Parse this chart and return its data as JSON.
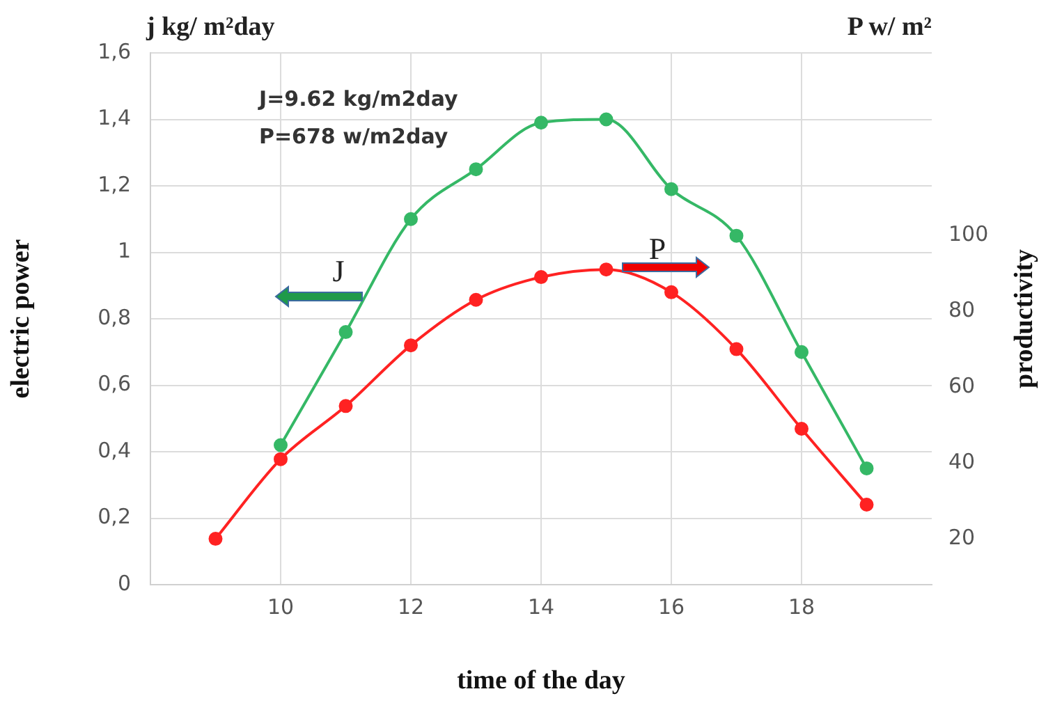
{
  "chart_data": {
    "type": "line",
    "xlabel": "time of the day",
    "ylabel": "electric power",
    "y2label": "productivity",
    "x": [
      9,
      10,
      11,
      12,
      13,
      14,
      15,
      16,
      17,
      18,
      19
    ],
    "series": [
      {
        "color": "#35b866",
        "x": [
          10,
          11,
          12,
          13,
          14,
          15,
          16,
          17,
          18,
          19
        ],
        "values": [
          0.42,
          0.76,
          1.1,
          1.25,
          1.39,
          1.4,
          1.19,
          1.05,
          0.7,
          0.35
        ]
      },
      {
        "color": "#ff2222",
        "axis": "y2",
        "values": [
          20,
          41,
          55,
          71,
          83,
          89,
          91,
          85,
          70,
          49,
          29
        ]
      }
    ],
    "xlim": [
      8,
      20
    ],
    "xticks": [
      10,
      12,
      14,
      16,
      18
    ],
    "ylim": [
      0,
      1.6
    ],
    "yticks": [
      0,
      {
        "value": 0.2,
        "label": "0,2"
      },
      {
        "value": 0.4,
        "label": "0,4"
      },
      {
        "value": 0.6,
        "label": "0,6"
      },
      {
        "value": 0.8,
        "label": "0,8"
      },
      1,
      {
        "value": 1.2,
        "label": "1,2"
      },
      {
        "value": 1.4,
        "label": "1,4"
      },
      {
        "value": 1.6,
        "label": "1,6"
      }
    ],
    "y2lim": [
      7.9,
      148.1
    ],
    "y2ticks": [
      20,
      40,
      60,
      80,
      100
    ],
    "grid": true,
    "legend": false,
    "marker": "circle",
    "line_style": "solid",
    "annotations": [
      "j kg/ m²day",
      "P w/ m²",
      "J=9.62 kg/m2day",
      "P=678 w/m2day",
      "J",
      "P"
    ]
  }
}
